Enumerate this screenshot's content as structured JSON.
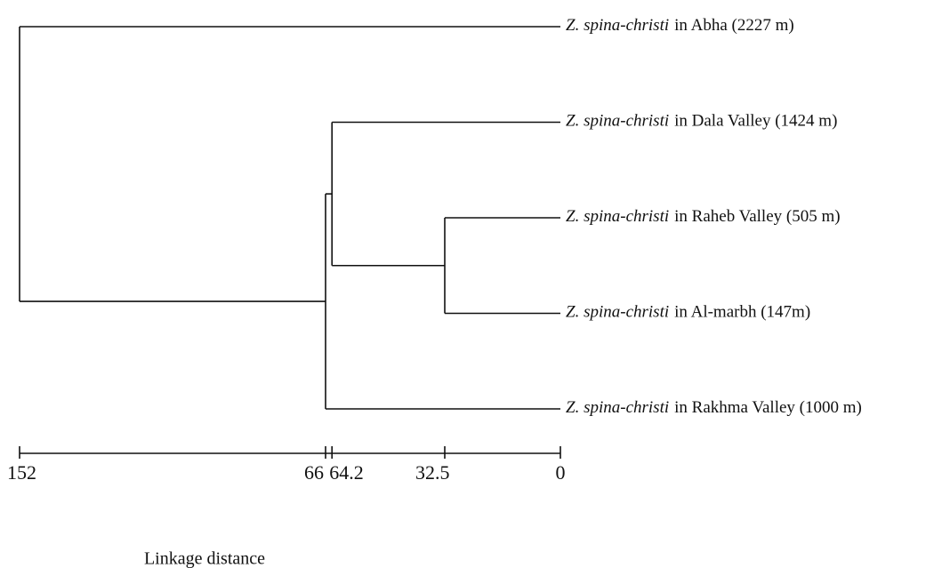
{
  "chart_data": {
    "type": "dendrogram",
    "x_label": "Linkage distance",
    "xlim": [
      152,
      0
    ],
    "xticks": [
      152,
      66,
      64.2,
      32.5,
      0
    ],
    "leaves": [
      {
        "species": "Z. spina-christi",
        "locality": "in Abha (2227 m)"
      },
      {
        "species": "Z. spina-christi",
        "locality": "in Dala Valley (1424 m)"
      },
      {
        "species": "Z. spina-christi",
        "locality": "in Raheb Valley (505 m)"
      },
      {
        "species": "Z. spina-christi",
        "locality": "in Al-marbh (147m)"
      },
      {
        "species": "Z. spina-christi",
        "locality": "in Rakhma Valley (1000 m)"
      }
    ],
    "merges": [
      {
        "height": 32.5,
        "children": [
          2,
          3
        ]
      },
      {
        "height": 64.2,
        "children": [
          1,
          5
        ]
      },
      {
        "height": 66,
        "children": [
          6,
          4
        ]
      },
      {
        "height": 152,
        "children": [
          0,
          7
        ]
      }
    ]
  }
}
